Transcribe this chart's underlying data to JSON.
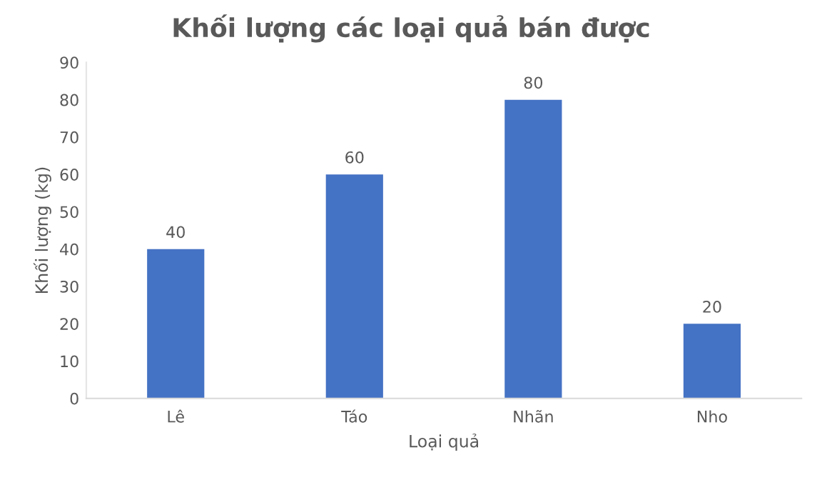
{
  "chart_data": {
    "type": "bar",
    "title": "Khối lượng các loại quả bán được",
    "xlabel": "Loại quả",
    "ylabel": "Khối lượng (kg)",
    "categories": [
      "Lê",
      "Táo",
      "Nhãn",
      "Nho"
    ],
    "values": [
      40,
      60,
      80,
      20
    ],
    "color": "#4472c4",
    "ylim": [
      0,
      90
    ],
    "yticks": [
      0,
      10,
      20,
      30,
      40,
      50,
      60,
      70,
      80,
      90
    ],
    "data_labels": true,
    "grid": false
  }
}
